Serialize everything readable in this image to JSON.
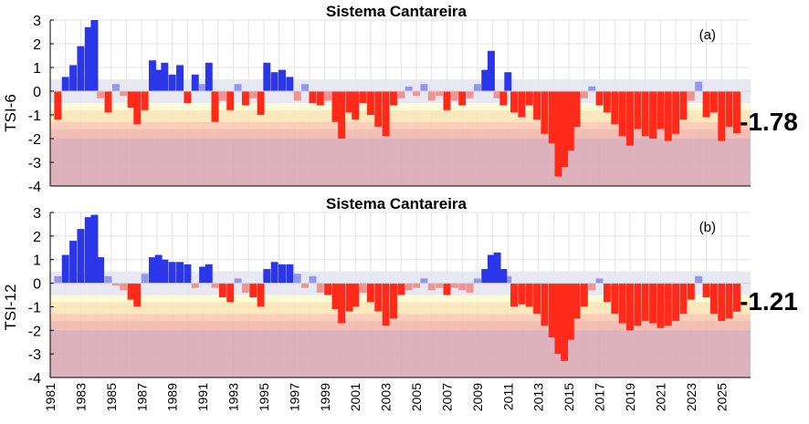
{
  "colors": {
    "positive": "#2a36e8",
    "negative": "#ff2a1a",
    "near_normal_band": "#e6e6f2",
    "drought_bands": [
      "#fdfbd0",
      "#fce5b6",
      "#f9c9b0",
      "#f2b7ae",
      "#d9aab6"
    ],
    "grid": "#e3e3e3"
  },
  "chart_data": [
    {
      "type": "bar",
      "panel_label": "(a)",
      "title": "Sistema Cantareira",
      "ylabel": "TSI-6",
      "ylim": [
        -4,
        3
      ],
      "xlim": [
        1981,
        2026.9
      ],
      "yticks": [
        "3",
        "2",
        "1",
        "0",
        "-1",
        "-2",
        "-3",
        "-4"
      ],
      "current_value": "-1.78",
      "grid": true,
      "drought_thresholds": [
        0.5,
        -0.5,
        -0.8,
        -1.3,
        -1.6,
        -2.0
      ],
      "series": [
        {
          "x": [
            1981.5,
            1982.0,
            1982.5,
            1983.0,
            1983.5,
            1983.9,
            1984.3,
            1984.8,
            1985.3,
            1985.8,
            1986.3,
            1986.7,
            1987.2,
            1987.7,
            1988.1,
            1988.5,
            1989.0,
            1989.5,
            1990.0,
            1990.5,
            1991.0,
            1991.4,
            1991.8,
            1992.3,
            1992.8,
            1993.3,
            1993.8,
            1994.3,
            1994.8,
            1995.2,
            1995.7,
            1996.2,
            1996.7,
            1997.2,
            1997.7,
            1998.2,
            1998.7,
            1999.2,
            1999.7,
            2000.1,
            2000.6,
            2001.0,
            2001.5,
            2002.0,
            2002.5,
            2003.0,
            2003.5,
            2004.0,
            2004.5,
            2005.0,
            2005.5,
            2006.0,
            2006.5,
            2007.0,
            2007.5,
            2008.0,
            2008.5,
            2009.0,
            2009.5,
            2009.9,
            2010.3,
            2010.7,
            2011.0,
            2011.4,
            2011.9,
            2012.4,
            2012.9,
            2013.4,
            2013.9,
            2014.3,
            2014.7,
            2015.1,
            2015.5,
            2016.0,
            2016.5,
            2017.0,
            2017.5,
            2018.0,
            2018.5,
            2019.0,
            2019.5,
            2020.0,
            2020.5,
            2021.0,
            2021.5,
            2022.0,
            2022.5,
            2023.0,
            2023.5,
            2024.0,
            2024.5,
            2025.0,
            2025.5,
            2026.0
          ],
          "values": [
            -1.2,
            0.6,
            1.1,
            1.9,
            2.7,
            3.0,
            -0.3,
            -0.9,
            0.3,
            -0.2,
            -0.7,
            -1.4,
            -0.8,
            1.3,
            0.9,
            1.2,
            0.7,
            1.1,
            -0.5,
            0.7,
            0.3,
            1.2,
            -1.3,
            -0.4,
            -0.8,
            0.3,
            -0.6,
            -0.3,
            -1.0,
            1.2,
            0.8,
            0.9,
            0.6,
            -0.4,
            0.3,
            -0.5,
            -0.6,
            -0.4,
            -1.3,
            -2.0,
            -0.9,
            -1.2,
            -0.5,
            -1.0,
            -1.5,
            -1.9,
            -0.6,
            -0.3,
            0.2,
            -0.2,
            0.3,
            -0.4,
            -0.2,
            -0.8,
            -0.4,
            -0.6,
            -0.3,
            0.3,
            0.9,
            1.7,
            -0.3,
            -0.6,
            0.8,
            -0.9,
            -1.1,
            -0.6,
            -1.2,
            -1.8,
            -2.2,
            -3.6,
            -3.2,
            -2.5,
            -1.5,
            -0.3,
            0.2,
            -0.6,
            -0.9,
            -1.4,
            -1.9,
            -2.3,
            -1.6,
            -1.9,
            -2.0,
            -1.6,
            -2.1,
            -1.8,
            -1.2,
            -0.4,
            0.4,
            -1.1,
            -0.9,
            -2.1,
            -1.5,
            -1.78
          ]
        }
      ]
    },
    {
      "type": "bar",
      "panel_label": "(b)",
      "title": "Sistema Cantareira",
      "ylabel": "TSI-12",
      "ylim": [
        -4,
        3
      ],
      "xlim": [
        1981,
        2026.9
      ],
      "yticks": [
        "3",
        "2",
        "1",
        "0",
        "-1",
        "-2",
        "-3",
        "-4"
      ],
      "current_value": "-1.21",
      "grid": true,
      "drought_thresholds": [
        0.5,
        -0.5,
        -0.8,
        -1.3,
        -1.6,
        -2.0
      ],
      "xticks": [
        "1981",
        "1983",
        "1985",
        "1987",
        "1989",
        "1991",
        "1993",
        "1995",
        "1997",
        "1999",
        "2001",
        "2003",
        "2005",
        "2007",
        "2009",
        "2011",
        "2013",
        "2015",
        "2017",
        "2019",
        "2021",
        "2023",
        "2025"
      ],
      "series": [
        {
          "x": [
            1981.5,
            1982.0,
            1982.5,
            1983.0,
            1983.5,
            1983.9,
            1984.3,
            1984.8,
            1985.3,
            1985.8,
            1986.3,
            1986.7,
            1987.2,
            1987.7,
            1988.1,
            1988.5,
            1989.0,
            1989.5,
            1990.0,
            1990.5,
            1991.0,
            1991.4,
            1991.8,
            1992.3,
            1992.8,
            1993.3,
            1993.8,
            1994.3,
            1994.8,
            1995.2,
            1995.7,
            1996.2,
            1996.7,
            1997.2,
            1997.7,
            1998.2,
            1998.7,
            1999.2,
            1999.7,
            2000.1,
            2000.6,
            2001.0,
            2001.5,
            2002.0,
            2002.5,
            2003.0,
            2003.5,
            2004.0,
            2004.5,
            2005.0,
            2005.5,
            2006.0,
            2006.5,
            2007.0,
            2007.5,
            2008.0,
            2008.5,
            2009.0,
            2009.5,
            2009.9,
            2010.3,
            2010.7,
            2011.0,
            2011.4,
            2011.9,
            2012.4,
            2012.9,
            2013.4,
            2013.9,
            2014.3,
            2014.7,
            2015.1,
            2015.5,
            2016.0,
            2016.5,
            2017.0,
            2017.5,
            2018.0,
            2018.5,
            2019.0,
            2019.5,
            2020.0,
            2020.5,
            2021.0,
            2021.5,
            2022.0,
            2022.5,
            2023.0,
            2023.5,
            2024.0,
            2024.5,
            2025.0,
            2025.5,
            2026.0
          ],
          "values": [
            0.3,
            1.2,
            1.8,
            2.3,
            2.8,
            2.9,
            1.1,
            0.3,
            -0.1,
            -0.3,
            -0.7,
            -1.0,
            0.4,
            1.1,
            1.2,
            1.0,
            0.9,
            0.9,
            0.8,
            -0.2,
            0.7,
            0.8,
            -0.2,
            -0.6,
            -0.8,
            0.2,
            -0.4,
            -0.6,
            -1.0,
            0.6,
            0.9,
            0.8,
            0.8,
            0.4,
            -0.2,
            0.3,
            -0.4,
            -0.5,
            -1.1,
            -1.7,
            -1.2,
            -1.0,
            -0.4,
            -0.8,
            -1.2,
            -1.8,
            -1.5,
            -0.5,
            -0.3,
            -0.2,
            0.2,
            -0.3,
            -0.2,
            -0.5,
            -0.2,
            -0.3,
            -0.4,
            0.2,
            0.6,
            1.2,
            1.3,
            0.6,
            0.3,
            -1.0,
            -0.9,
            -1.0,
            -1.3,
            -1.8,
            -2.3,
            -3.0,
            -3.3,
            -2.4,
            -1.5,
            -1.0,
            -0.3,
            0.2,
            -0.8,
            -1.3,
            -1.7,
            -2.0,
            -1.8,
            -1.6,
            -1.7,
            -1.9,
            -1.8,
            -1.6,
            -1.3,
            -0.7,
            0.3,
            -0.6,
            -1.3,
            -1.6,
            -1.5,
            -1.21
          ]
        }
      ]
    }
  ]
}
